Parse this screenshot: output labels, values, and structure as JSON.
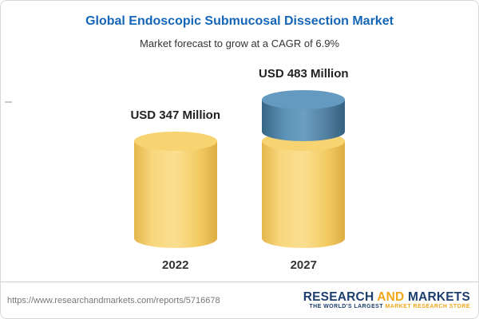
{
  "header": {
    "title": "Global Endoscopic Submucosal Dissection Market",
    "subtitle": "Market forecast to grow at a CAGR of 6.9%"
  },
  "chart_data": {
    "type": "bar",
    "subtype": "3d-cylinder-stacked",
    "title": "Global Endoscopic Submucosal Dissection Market",
    "subtitle": "Market forecast to grow at a CAGR of 6.9%",
    "cagr": "6.9%",
    "unit": "USD Million",
    "categories": [
      "2022",
      "2027"
    ],
    "totals": [
      347,
      483
    ],
    "value_labels": [
      "USD 347 Million",
      "USD 483 Million"
    ],
    "series": [
      {
        "name": "base",
        "values": [
          347,
          347
        ]
      },
      {
        "name": "growth",
        "values": [
          0,
          136
        ]
      }
    ],
    "ylim": [
      0,
      483
    ],
    "legend": "none",
    "grid": "off",
    "colors": {
      "base": "#F3CB63",
      "growth": "#4D83AA"
    },
    "columns": [
      {
        "year": "2022",
        "label": "USD 347 Million",
        "total": 347,
        "segments": [
          {
            "name": "base",
            "value": 347,
            "color_key": "base"
          }
        ]
      },
      {
        "year": "2027",
        "label": "USD 483 Million",
        "total": 483,
        "segments": [
          {
            "name": "base",
            "value": 347,
            "color_key": "base"
          },
          {
            "name": "growth",
            "value": 136,
            "color_key": "growth"
          }
        ]
      }
    ]
  },
  "footer": {
    "url": "https://www.researchandmarkets.com/reports/5716678",
    "logo": {
      "part1": "RESEARCH ",
      "part2": "AND",
      "part3": " MARKETS",
      "tagline_1": "THE WORLD'S LARGEST ",
      "tagline_2": "MARKET RESEARCH STORE"
    }
  }
}
